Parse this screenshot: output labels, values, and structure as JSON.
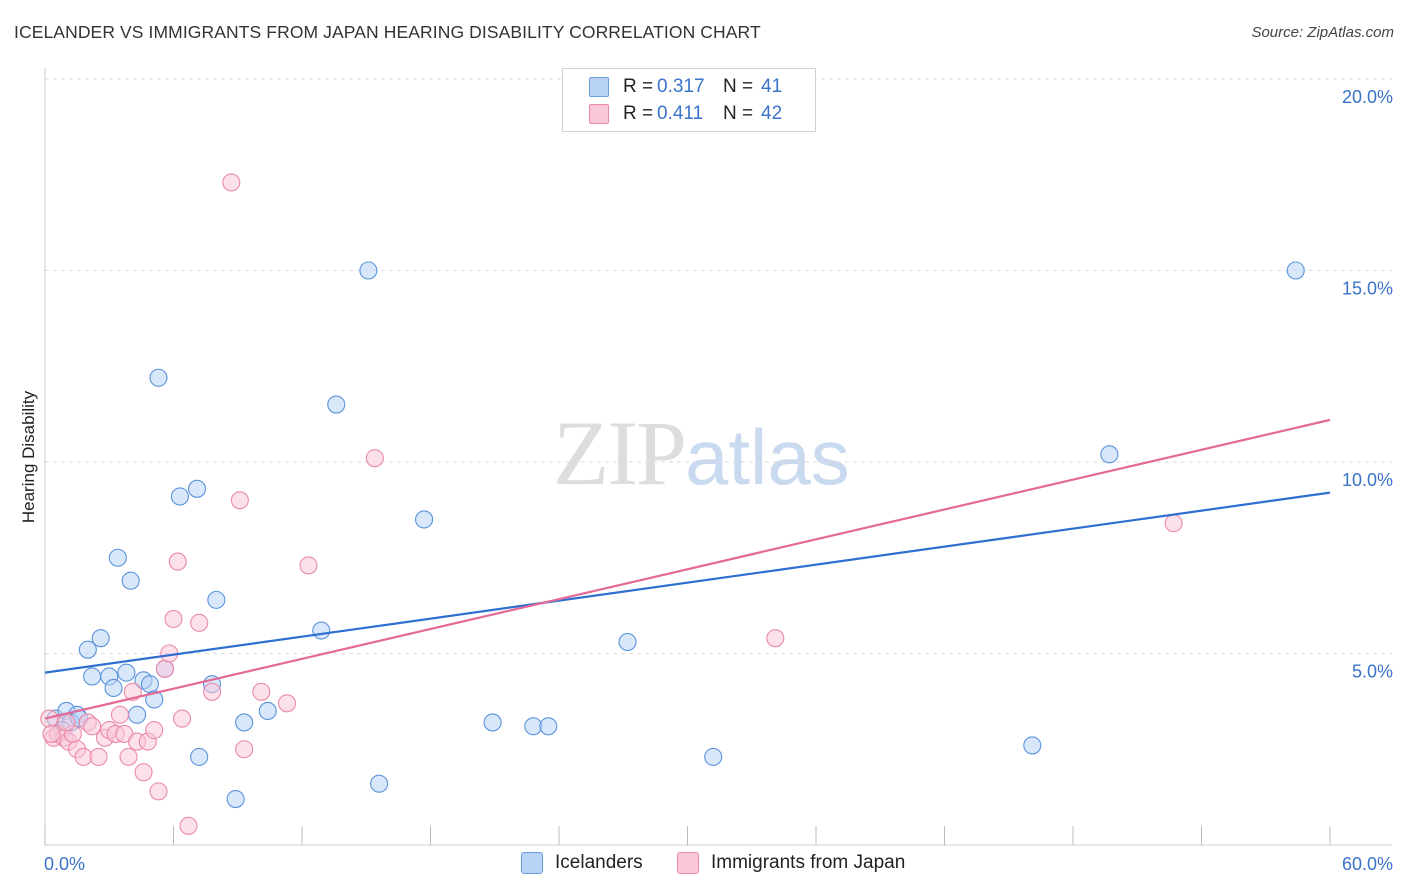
{
  "header": {
    "title": "ICELANDER VS IMMIGRANTS FROM JAPAN HEARING DISABILITY CORRELATION CHART",
    "source": "Source: ZipAtlas.com"
  },
  "watermark": {
    "zip": "ZIP",
    "atlas": "atlas"
  },
  "legend": {
    "rows": [
      {
        "r_label": "R =",
        "r_value": "0.317",
        "n_label": "N =",
        "n_value": "41",
        "color": "#b8d3f5",
        "stroke": "#6a9fdc"
      },
      {
        "r_label": "R =",
        "r_value": "0.411",
        "n_label": "N =",
        "n_value": "42",
        "color": "#f9c8d8",
        "stroke": "#e98aa8"
      }
    ]
  },
  "bottom_legend": {
    "items": [
      {
        "label": "Icelanders",
        "color": "#b8d3f5",
        "stroke": "#6a9fdc"
      },
      {
        "label": "Immigrants from Japan",
        "color": "#f9c8d8",
        "stroke": "#e98aa8"
      }
    ]
  },
  "chart_data": {
    "type": "scatter",
    "title": "ICELANDER VS IMMIGRANTS FROM JAPAN HEARING DISABILITY CORRELATION CHART",
    "xlabel": "",
    "ylabel": "Hearing Disability",
    "xlim": [
      0,
      60
    ],
    "ylim": [
      0,
      20
    ],
    "x_tick_labels": {
      "min": "0.0%",
      "max": "60.0%"
    },
    "y_ticks": [
      {
        "value": 5,
        "label": "5.0%"
      },
      {
        "value": 10,
        "label": "10.0%"
      },
      {
        "value": 15,
        "label": "15.0%"
      },
      {
        "value": 20,
        "label": "20.0%"
      }
    ],
    "grid": true,
    "series": [
      {
        "name": "Icelanders",
        "color": "#5b93dc",
        "fill": "#b8d3f5",
        "r": 0.317,
        "n": 41,
        "trend": {
          "x0": 0,
          "y0": 4.5,
          "x1": 60,
          "y1": 9.2,
          "color": "#2f6fd0"
        },
        "points": [
          [
            0.5,
            3.3
          ],
          [
            1.0,
            3.5
          ],
          [
            1.5,
            3.4
          ],
          [
            1.2,
            3.2
          ],
          [
            0.8,
            3.0
          ],
          [
            2.0,
            5.1
          ],
          [
            2.2,
            4.4
          ],
          [
            2.6,
            5.4
          ],
          [
            3.0,
            4.4
          ],
          [
            3.2,
            4.1
          ],
          [
            3.4,
            7.5
          ],
          [
            3.8,
            4.5
          ],
          [
            4.0,
            6.9
          ],
          [
            4.3,
            3.4
          ],
          [
            4.6,
            4.3
          ],
          [
            4.9,
            4.2
          ],
          [
            5.1,
            3.8
          ],
          [
            5.3,
            12.2
          ],
          [
            5.6,
            4.6
          ],
          [
            6.3,
            9.1
          ],
          [
            7.1,
            9.3
          ],
          [
            7.2,
            2.3
          ],
          [
            7.8,
            4.2
          ],
          [
            8.0,
            6.4
          ],
          [
            8.9,
            1.2
          ],
          [
            9.3,
            3.2
          ],
          [
            10.4,
            3.5
          ],
          [
            12.9,
            5.6
          ],
          [
            13.6,
            11.5
          ],
          [
            15.1,
            15.0
          ],
          [
            15.6,
            1.6
          ],
          [
            17.7,
            8.5
          ],
          [
            20.9,
            3.2
          ],
          [
            22.8,
            3.1
          ],
          [
            23.5,
            3.1
          ],
          [
            27.2,
            5.3
          ],
          [
            31.2,
            2.3
          ],
          [
            46.1,
            2.6
          ],
          [
            49.7,
            10.2
          ],
          [
            58.4,
            15.0
          ],
          [
            1.6,
            3.3
          ]
        ]
      },
      {
        "name": "Immigrants from Japan",
        "color": "#e98aa8",
        "fill": "#f9c8d8",
        "r": 0.411,
        "n": 42,
        "trend": {
          "x0": 0,
          "y0": 3.3,
          "x1": 60,
          "y1": 11.1,
          "color": "#e26a95"
        },
        "points": [
          [
            0.2,
            3.3
          ],
          [
            0.4,
            2.8
          ],
          [
            0.6,
            2.9
          ],
          [
            0.9,
            2.8
          ],
          [
            1.1,
            2.7
          ],
          [
            1.3,
            2.9
          ],
          [
            1.5,
            2.5
          ],
          [
            1.8,
            2.3
          ],
          [
            2.0,
            3.2
          ],
          [
            2.2,
            3.1
          ],
          [
            2.5,
            2.3
          ],
          [
            2.8,
            2.8
          ],
          [
            3.0,
            3.0
          ],
          [
            3.3,
            2.9
          ],
          [
            3.5,
            3.4
          ],
          [
            3.7,
            2.9
          ],
          [
            3.9,
            2.3
          ],
          [
            4.1,
            4.0
          ],
          [
            4.3,
            2.7
          ],
          [
            4.6,
            1.9
          ],
          [
            4.8,
            2.7
          ],
          [
            5.1,
            3.0
          ],
          [
            5.3,
            1.4
          ],
          [
            5.6,
            4.6
          ],
          [
            5.8,
            5.0
          ],
          [
            6.0,
            5.9
          ],
          [
            6.2,
            7.4
          ],
          [
            6.4,
            3.3
          ],
          [
            6.7,
            0.5
          ],
          [
            7.2,
            5.8
          ],
          [
            7.8,
            4.0
          ],
          [
            8.7,
            17.3
          ],
          [
            9.1,
            9.0
          ],
          [
            9.3,
            2.5
          ],
          [
            10.1,
            4.0
          ],
          [
            11.3,
            3.7
          ],
          [
            12.3,
            7.3
          ],
          [
            15.4,
            10.1
          ],
          [
            34.1,
            5.4
          ],
          [
            52.7,
            8.4
          ],
          [
            0.3,
            2.9
          ],
          [
            1.0,
            3.2
          ]
        ]
      }
    ]
  }
}
